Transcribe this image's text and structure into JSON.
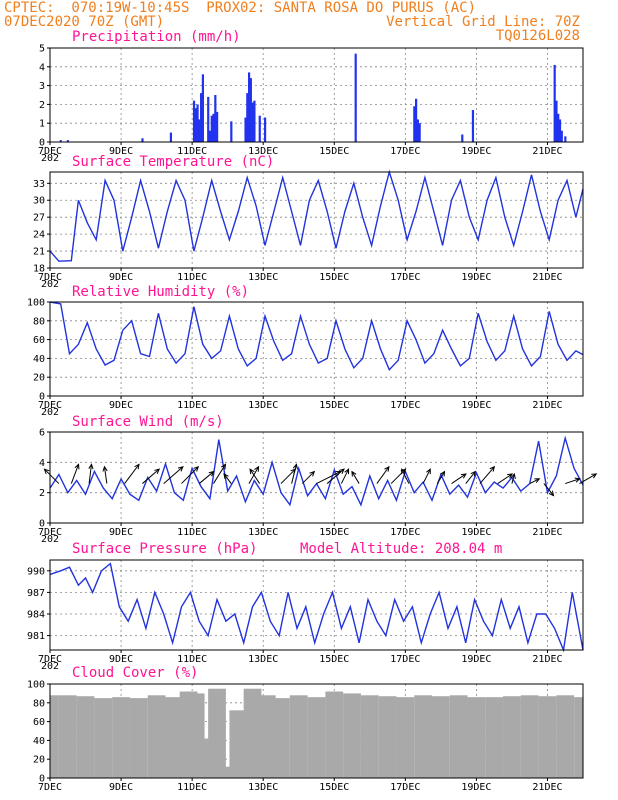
{
  "header": {
    "line1": "CPTEC:  070:19W-10:45S  PROX02: SANTA ROSA DO PURUS (AC)",
    "line2_left": "07DEC2020 70Z (GMT)",
    "line2_right": "Vertical Grid Line: 70Z",
    "line3_right": "TQ0126L028"
  },
  "x_axis": {
    "tick_labels": [
      "7DEC",
      "9DEC",
      "11DEC",
      "13DEC",
      "15DEC",
      "17DEC",
      "19DEC",
      "21DEC"
    ],
    "tick_days": [
      0,
      2,
      4,
      6,
      8,
      10,
      12,
      14
    ],
    "xlim_days": [
      0,
      15
    ],
    "year_stub": "202"
  },
  "model_altitude_label": "Model Altitude: 208.04 m",
  "colors": {
    "line": "#2233dd",
    "bar": "#2233ee",
    "cloud": "#a9a9a9",
    "title": "#ff1493",
    "header": "#f07f1e"
  },
  "chart_data": [
    {
      "type": "bar",
      "title": "Precipitation (mm/h)",
      "ylim": [
        0,
        5
      ],
      "yticks": [
        0,
        1,
        2,
        3,
        4,
        5
      ],
      "x_days": [
        0.3,
        0.5,
        2.6,
        3.4,
        4.05,
        4.1,
        4.15,
        4.2,
        4.25,
        4.3,
        4.45,
        4.5,
        4.55,
        4.6,
        4.65,
        4.7,
        5.1,
        5.5,
        5.55,
        5.6,
        5.65,
        5.7,
        5.75,
        5.9,
        6.05,
        8.6,
        10.25,
        10.3,
        10.35,
        10.4,
        11.6,
        11.9,
        14.2,
        14.25,
        14.3,
        14.35,
        14.4,
        14.5
      ],
      "values": [
        0.1,
        0.1,
        0.2,
        0.5,
        2.2,
        1.8,
        2.0,
        1.2,
        2.6,
        3.6,
        2.4,
        0.6,
        1.4,
        1.5,
        2.5,
        1.6,
        1.1,
        1.3,
        2.6,
        3.7,
        3.4,
        2.1,
        2.2,
        1.4,
        1.3,
        4.7,
        1.9,
        2.3,
        1.2,
        1.0,
        0.4,
        1.7,
        4.1,
        2.2,
        1.5,
        1.2,
        0.6,
        0.3
      ]
    },
    {
      "type": "line",
      "title": "Surface Temperature (nC)",
      "ylim": [
        18,
        35
      ],
      "yticks": [
        18,
        21,
        24,
        27,
        30,
        33
      ],
      "x_days": [
        0,
        0.25,
        0.6,
        0.8,
        1.05,
        1.3,
        1.55,
        1.8,
        2.05,
        2.3,
        2.55,
        2.8,
        3.05,
        3.3,
        3.55,
        3.8,
        4.05,
        4.3,
        4.55,
        4.8,
        5.05,
        5.3,
        5.55,
        5.8,
        6.05,
        6.3,
        6.55,
        6.8,
        7.05,
        7.3,
        7.55,
        7.8,
        8.05,
        8.3,
        8.55,
        8.8,
        9.05,
        9.3,
        9.55,
        9.8,
        10.05,
        10.3,
        10.55,
        10.8,
        11.05,
        11.3,
        11.55,
        11.8,
        12.05,
        12.3,
        12.55,
        12.8,
        13.05,
        13.3,
        13.55,
        13.8,
        14.05,
        14.3,
        14.55,
        14.8,
        15
      ],
      "values": [
        21,
        19.2,
        19.3,
        30,
        26,
        23,
        33.5,
        30,
        21,
        27,
        33.5,
        28,
        21.5,
        28,
        33.5,
        30,
        21,
        27,
        33.5,
        28,
        23,
        28,
        34,
        29,
        22,
        28,
        34,
        28,
        22,
        30,
        33.5,
        28,
        21.5,
        28,
        33,
        27,
        22,
        29,
        35,
        30,
        23,
        28,
        34,
        28,
        22,
        30,
        33.5,
        27,
        23,
        30,
        34,
        27,
        22,
        28,
        34.5,
        28,
        23,
        30,
        33.5,
        27,
        32
      ]
    },
    {
      "type": "line",
      "title": "Relative Humidity (%)",
      "ylim": [
        0,
        100
      ],
      "yticks": [
        0,
        20,
        40,
        60,
        80,
        100
      ],
      "x_days": [
        0,
        0.3,
        0.55,
        0.8,
        1.05,
        1.3,
        1.55,
        1.8,
        2.05,
        2.3,
        2.55,
        2.8,
        3.05,
        3.3,
        3.55,
        3.8,
        4.05,
        4.3,
        4.55,
        4.8,
        5.05,
        5.3,
        5.55,
        5.8,
        6.05,
        6.3,
        6.55,
        6.8,
        7.05,
        7.3,
        7.55,
        7.8,
        8.05,
        8.3,
        8.55,
        8.8,
        9.05,
        9.3,
        9.55,
        9.8,
        10.05,
        10.3,
        10.55,
        10.8,
        11.05,
        11.3,
        11.55,
        11.8,
        12.05,
        12.3,
        12.55,
        12.8,
        13.05,
        13.3,
        13.55,
        13.8,
        14.05,
        14.3,
        14.55,
        14.8,
        15
      ],
      "values": [
        100,
        98,
        45,
        55,
        78,
        50,
        33,
        38,
        70,
        80,
        45,
        42,
        88,
        50,
        35,
        45,
        95,
        55,
        40,
        48,
        85,
        50,
        32,
        40,
        85,
        58,
        38,
        45,
        85,
        55,
        35,
        40,
        80,
        50,
        30,
        40,
        80,
        50,
        28,
        38,
        80,
        60,
        35,
        45,
        70,
        50,
        32,
        40,
        88,
        58,
        38,
        48,
        85,
        50,
        32,
        42,
        90,
        55,
        38,
        48,
        44
      ]
    },
    {
      "type": "line",
      "title": "Surface Wind (m/s)",
      "ylim": [
        0,
        6
      ],
      "yticks": [
        0,
        2,
        4,
        6
      ],
      "x_days": [
        0,
        0.25,
        0.5,
        0.75,
        1.0,
        1.25,
        1.5,
        1.75,
        2.0,
        2.25,
        2.5,
        2.75,
        3.0,
        3.25,
        3.5,
        3.75,
        4.0,
        4.25,
        4.5,
        4.75,
        5.0,
        5.25,
        5.5,
        5.75,
        6.0,
        6.25,
        6.5,
        6.75,
        7.0,
        7.25,
        7.5,
        7.75,
        8.0,
        8.25,
        8.5,
        8.75,
        9.0,
        9.25,
        9.5,
        9.75,
        10.0,
        10.25,
        10.5,
        10.75,
        11.0,
        11.25,
        11.5,
        11.75,
        12.0,
        12.25,
        12.5,
        12.75,
        13.0,
        13.25,
        13.5,
        13.75,
        14.0,
        14.25,
        14.5,
        14.75,
        15
      ],
      "values": [
        2.3,
        3.2,
        2.0,
        2.8,
        1.9,
        3.4,
        2.3,
        1.6,
        2.9,
        1.9,
        1.5,
        3.0,
        2.1,
        3.9,
        2.0,
        1.5,
        3.6,
        2.4,
        1.6,
        5.5,
        2.1,
        3.1,
        1.4,
        2.8,
        1.9,
        4.0,
        2.0,
        1.2,
        3.6,
        1.8,
        2.6,
        1.6,
        3.5,
        1.9,
        2.4,
        1.2,
        3.1,
        1.6,
        2.8,
        1.5,
        3.4,
        2.0,
        2.7,
        1.5,
        3.2,
        1.9,
        2.5,
        1.7,
        3.3,
        2.0,
        2.7,
        2.3,
        3.0,
        2.1,
        2.6,
        5.4,
        2.0,
        3.1,
        5.6,
        3.6,
        2.5
      ],
      "arrows": {
        "x_days": [
          0.25,
          0.6,
          1.1,
          1.6,
          2.1,
          2.6,
          3.2,
          3.7,
          4.2,
          4.6,
          5.1,
          5.6,
          5.9,
          6.5,
          6.8,
          7.1,
          7.5,
          7.8,
          8.2,
          8.7,
          9.2,
          9.6,
          10.1,
          10.5,
          10.9,
          11.3,
          11.7,
          12.1,
          12.6,
          13.0,
          13.5,
          13.9,
          14.5,
          14.9
        ],
        "u": [
          -0.6,
          0.3,
          0.1,
          -0.1,
          0.6,
          0.7,
          0.8,
          0.7,
          0.6,
          0.5,
          -0.3,
          0.4,
          -0.4,
          0.6,
          0.2,
          0.5,
          1.0,
          0.7,
          0.3,
          -0.3,
          0.5,
          0.6,
          -0.3,
          0.3,
          0.3,
          0.6,
          0.4,
          0.6,
          0.6,
          0.1,
          0.4,
          0.4,
          0.6,
          0.7
        ],
        "v": [
          0.6,
          0.8,
          0.8,
          0.7,
          0.8,
          0.6,
          0.7,
          0.7,
          0.5,
          0.8,
          0.4,
          0.7,
          0.6,
          0.6,
          0.8,
          0.5,
          0.5,
          0.6,
          0.6,
          0.5,
          0.7,
          0.6,
          0.6,
          0.6,
          0.5,
          0.4,
          0.5,
          0.7,
          0.4,
          0.4,
          0.2,
          -0.5,
          0.2,
          0.4
        ]
      }
    },
    {
      "type": "line",
      "title": "Surface Pressure (hPa)",
      "ylim": [
        979,
        991.5
      ],
      "yticks": [
        981,
        984,
        987,
        990
      ],
      "x_days": [
        0,
        0.3,
        0.55,
        0.8,
        1.0,
        1.2,
        1.45,
        1.7,
        1.95,
        2.2,
        2.45,
        2.7,
        2.95,
        3.2,
        3.45,
        3.7,
        3.95,
        4.2,
        4.45,
        4.7,
        4.95,
        5.2,
        5.45,
        5.7,
        5.95,
        6.2,
        6.45,
        6.7,
        6.95,
        7.2,
        7.45,
        7.7,
        7.95,
        8.2,
        8.45,
        8.7,
        8.95,
        9.2,
        9.45,
        9.7,
        9.95,
        10.2,
        10.45,
        10.7,
        10.95,
        11.2,
        11.45,
        11.7,
        11.95,
        12.2,
        12.45,
        12.7,
        12.95,
        13.2,
        13.45,
        13.7,
        13.95,
        14.2,
        14.45,
        14.7,
        15
      ],
      "values": [
        989.5,
        990,
        990.5,
        988,
        989,
        987,
        990,
        991,
        985,
        983,
        986,
        982,
        987,
        984,
        980,
        985,
        987,
        983,
        981,
        986,
        983,
        984,
        980,
        985,
        987,
        983,
        981,
        987,
        982,
        985,
        980,
        984,
        987,
        982,
        985,
        980,
        986,
        983,
        981,
        986,
        983,
        985,
        980,
        984,
        987,
        982,
        985,
        980,
        986,
        983,
        981,
        986,
        982,
        985,
        980,
        984,
        984,
        982,
        979,
        987,
        979
      ]
    },
    {
      "type": "bar",
      "title": "Cloud Cover (%)",
      "ylim": [
        0,
        100
      ],
      "yticks": [
        0,
        20,
        40,
        60,
        80,
        100
      ],
      "x_days": [
        0,
        0.5,
        1.0,
        1.5,
        2.0,
        2.5,
        3.0,
        3.5,
        3.9,
        4.1,
        4.3,
        4.5,
        4.7,
        4.9,
        5.1,
        5.3,
        5.5,
        5.7,
        5.9,
        6.1,
        6.5,
        7.0,
        7.5,
        8.0,
        8.5,
        9.0,
        9.5,
        10.0,
        10.5,
        11.0,
        11.5,
        12.0,
        12.5,
        13.0,
        13.5,
        14.0,
        14.5,
        15.0
      ],
      "values": [
        88,
        88,
        87,
        85,
        86,
        85,
        88,
        86,
        92,
        90,
        42,
        22,
        95,
        5,
        12,
        72,
        8,
        95,
        10,
        88,
        85,
        88,
        86,
        92,
        90,
        88,
        87,
        86,
        88,
        87,
        88,
        86,
        86,
        87,
        88,
        87,
        88,
        86
      ]
    }
  ]
}
